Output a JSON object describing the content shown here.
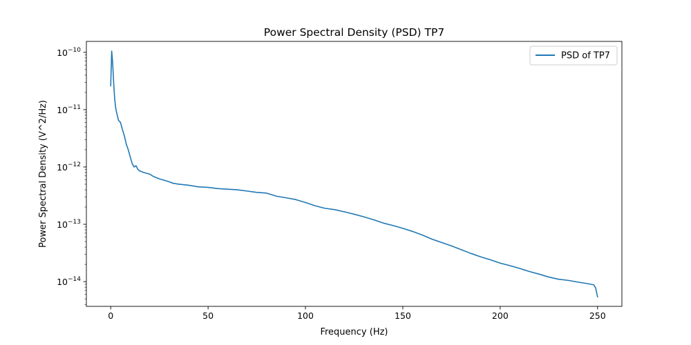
{
  "chart_data": {
    "type": "line",
    "title": "Power Spectral Density (PSD) TP7",
    "xlabel": "Frequency (Hz)",
    "ylabel": "Power Spectral Density (V^2/Hz)",
    "xlim": [
      -12.5,
      262.5
    ],
    "ylim": [
      3.7e-15,
      1.55e-10
    ],
    "yscale": "log",
    "grid": false,
    "legend": "top-right",
    "x_ticks": [
      0,
      50,
      100,
      150,
      200,
      250
    ],
    "x_tick_labels": [
      "0",
      "50",
      "100",
      "150",
      "200",
      "250"
    ],
    "y_ticks": [
      1e-10,
      1e-11,
      1e-12,
      1e-13,
      1e-14
    ],
    "y_tick_labels": [
      {
        "base": "10",
        "exp": "−10"
      },
      {
        "base": "10",
        "exp": "−11"
      },
      {
        "base": "10",
        "exp": "−12"
      },
      {
        "base": "10",
        "exp": "−13"
      },
      {
        "base": "10",
        "exp": "−14"
      }
    ],
    "series": [
      {
        "name": "PSD of TP7",
        "color": "#1f77b4",
        "x": [
          0,
          0.5,
          1,
          1.5,
          2,
          2.5,
          3,
          4,
          5,
          6,
          7,
          8,
          9,
          10,
          11,
          12,
          13,
          14,
          15,
          17,
          20,
          22,
          25,
          28,
          30,
          32,
          35,
          40,
          45,
          50,
          55,
          60,
          65,
          70,
          75,
          80,
          85,
          90,
          95,
          100,
          105,
          110,
          115,
          120,
          125,
          130,
          135,
          140,
          145,
          150,
          155,
          160,
          165,
          170,
          175,
          180,
          185,
          190,
          195,
          200,
          205,
          210,
          215,
          220,
          225,
          230,
          235,
          240,
          245,
          248,
          249,
          250
        ],
        "y": [
          2.6e-11,
          1.05e-10,
          6.5e-11,
          3e-11,
          1.6e-11,
          1.1e-11,
          9e-12,
          6.5e-12,
          6e-12,
          4.5e-12,
          3.5e-12,
          2.5e-12,
          2e-12,
          1.5e-12,
          1.15e-12,
          1e-12,
          1.05e-12,
          9e-13,
          8.5e-13,
          8e-13,
          7.5e-13,
          6.8e-13,
          6.2e-13,
          5.8e-13,
          5.5e-13,
          5.2e-13,
          5e-13,
          4.8e-13,
          4.5e-13,
          4.4e-13,
          4.2e-13,
          4.1e-13,
          4e-13,
          3.8e-13,
          3.6e-13,
          3.5e-13,
          3.1e-13,
          2.9e-13,
          2.7e-13,
          2.4e-13,
          2.1e-13,
          1.9e-13,
          1.8e-13,
          1.65e-13,
          1.5e-13,
          1.35e-13,
          1.2e-13,
          1.05e-13,
          9.5e-14,
          8.5e-14,
          7.5e-14,
          6.5e-14,
          5.5e-14,
          4.8e-14,
          4.2e-14,
          3.6e-14,
          3.1e-14,
          2.7e-14,
          2.4e-14,
          2.1e-14,
          1.9e-14,
          1.7e-14,
          1.5e-14,
          1.35e-14,
          1.2e-14,
          1.1e-14,
          1.05e-14,
          9.8e-15,
          9.2e-15,
          8.8e-15,
          7.8e-15,
          5.4e-15
        ]
      }
    ]
  }
}
